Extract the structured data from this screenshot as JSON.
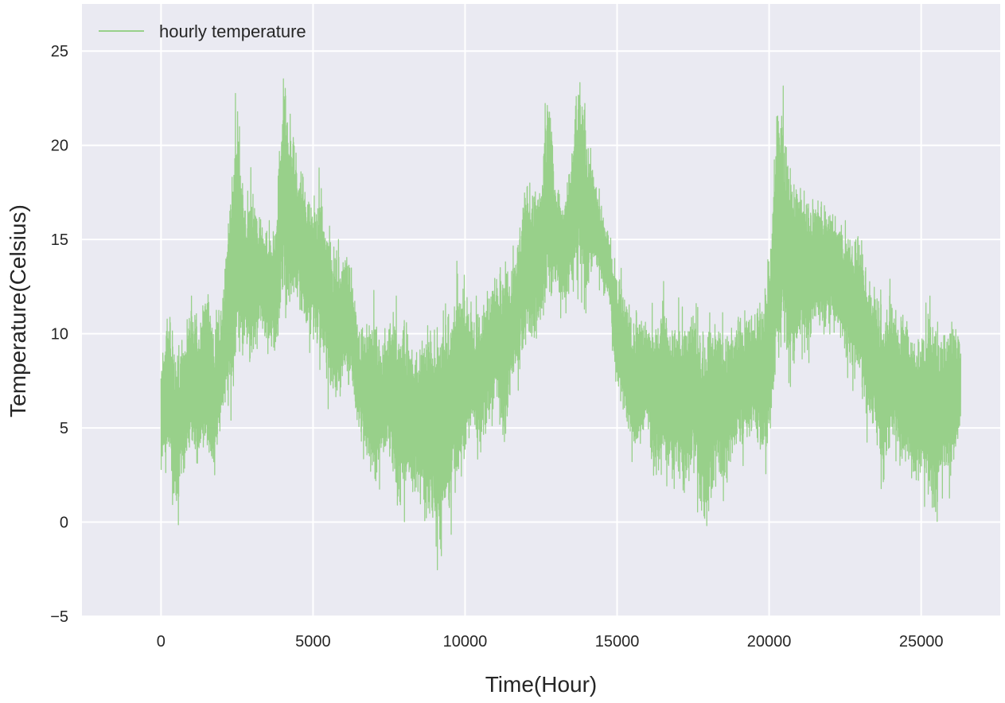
{
  "chart_data": {
    "type": "line",
    "title": "",
    "xlabel": "Time(Hour)",
    "ylabel": "Temperature(Celsius)",
    "xlim": [
      -2600,
      27600
    ],
    "ylim": [
      -5,
      27.5
    ],
    "xticks": [
      0,
      5000,
      10000,
      15000,
      20000,
      25000
    ],
    "xtick_labels": [
      "0",
      "5000",
      "10000",
      "15000",
      "20000",
      "25000"
    ],
    "yticks": [
      -5,
      0,
      5,
      10,
      15,
      20,
      25
    ],
    "ytick_labels": [
      "−5",
      "0",
      "5",
      "10",
      "15",
      "20",
      "25"
    ],
    "grid": true,
    "legend_position": "top-left",
    "series": [
      {
        "name": "hourly temperature",
        "color": "#98d08a",
        "x_start": 0,
        "x_end": 26300,
        "envelope_note": "approximate daily range, sampled every 250 h",
        "x": [
          0,
          250,
          500,
          750,
          1000,
          1250,
          1500,
          1750,
          2000,
          2250,
          2500,
          2750,
          3000,
          3250,
          3500,
          3750,
          4000,
          4250,
          4500,
          4750,
          5000,
          5250,
          5500,
          5750,
          6000,
          6250,
          6500,
          6750,
          7000,
          7250,
          7500,
          7750,
          8000,
          8250,
          8500,
          8750,
          9000,
          9250,
          9500,
          9750,
          10000,
          10250,
          10500,
          10750,
          11000,
          11250,
          11500,
          11750,
          12000,
          12250,
          12500,
          12750,
          13000,
          13250,
          13500,
          13750,
          14000,
          14250,
          14500,
          14750,
          15000,
          15250,
          15500,
          15750,
          16000,
          16250,
          16500,
          16750,
          17000,
          17250,
          17500,
          17750,
          18000,
          18250,
          18500,
          18750,
          19000,
          19250,
          19500,
          19750,
          20000,
          20250,
          20500,
          20750,
          21000,
          21250,
          21500,
          21750,
          22000,
          22250,
          22500,
          22750,
          23000,
          23250,
          23500,
          23750,
          24000,
          24250,
          24500,
          24750,
          25000,
          25250,
          25500,
          25750,
          26000,
          26250
        ],
        "low": [
          2,
          3,
          -1,
          2,
          3,
          1.5,
          3,
          1,
          5,
          5,
          7,
          8,
          7,
          9,
          9,
          8,
          10,
          10,
          11,
          9,
          9,
          8,
          6,
          5,
          7,
          6,
          4,
          3,
          1,
          2,
          3,
          -0.3,
          0,
          1,
          0,
          -1,
          -2,
          -3.5,
          -1,
          1,
          2,
          4,
          3,
          4,
          6,
          2,
          6,
          7,
          8,
          8,
          9,
          11,
          12,
          10,
          11,
          12,
          11,
          13,
          12,
          11,
          6,
          5,
          2,
          3,
          5,
          0.5,
          3,
          1,
          1,
          0,
          2,
          -0.5,
          -1.5,
          2,
          0,
          2,
          3,
          3,
          4,
          2,
          3,
          6,
          8,
          7,
          9,
          8,
          10,
          9,
          10,
          9,
          8,
          7,
          6,
          4,
          4,
          1,
          3,
          2,
          2,
          1,
          1.5,
          0,
          -1.5,
          2,
          1,
          4
        ],
        "high": [
          9,
          12,
          10,
          11,
          12,
          12,
          14,
          12,
          12,
          18,
          24,
          18,
          19,
          17,
          16,
          16,
          25,
          23,
          20,
          19,
          18,
          19,
          17,
          15,
          15,
          15,
          11,
          11,
          13,
          10,
          12,
          12,
          12,
          10,
          10,
          12,
          11,
          13,
          12,
          14,
          13,
          12,
          12,
          13,
          14,
          15,
          14,
          16,
          20,
          19,
          19,
          25,
          18,
          18,
          20,
          26,
          22,
          19,
          17,
          16,
          14,
          13,
          12,
          12,
          11,
          12,
          13,
          11,
          12,
          11,
          12,
          11,
          12,
          12,
          11,
          11,
          12,
          12,
          12,
          13,
          15,
          24,
          23,
          20,
          19,
          18,
          18,
          18,
          17,
          17,
          16,
          16,
          16,
          14,
          13,
          12,
          13,
          12,
          12,
          11,
          11,
          12,
          12,
          11,
          12,
          11
        ]
      }
    ]
  }
}
